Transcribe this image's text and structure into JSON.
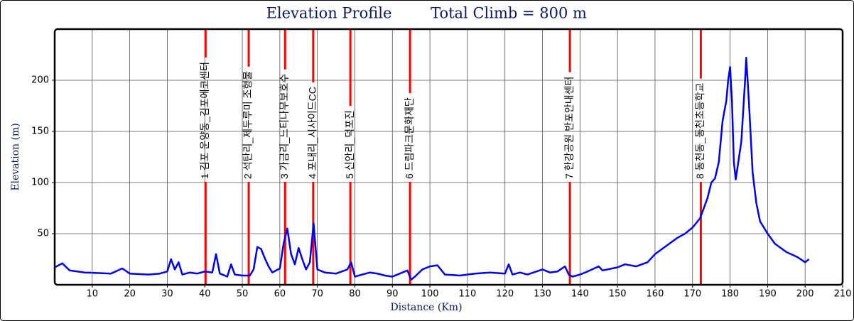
{
  "chart_data": {
    "type": "line",
    "title": "Elevation Profile",
    "subtitle": "Total Climb =  800 m",
    "xlabel": "Distance (Km)",
    "ylabel": "Elevation (m)",
    "xlim": [
      0,
      210
    ],
    "ylim": [
      0,
      250
    ],
    "xticks": [
      10,
      20,
      30,
      40,
      50,
      60,
      70,
      80,
      90,
      100,
      110,
      120,
      130,
      140,
      150,
      160,
      170,
      180,
      190,
      200,
      210
    ],
    "yticks": [
      50,
      100,
      150,
      200
    ],
    "grid": true,
    "x": [
      0,
      2,
      4,
      8,
      15,
      18,
      20,
      25,
      28,
      30,
      31,
      32,
      33,
      34,
      36,
      38,
      40,
      42,
      43,
      44,
      46,
      47,
      48,
      50,
      52,
      53,
      54,
      55,
      56,
      57,
      58,
      60,
      61,
      62,
      63,
      64,
      65,
      66,
      67,
      68,
      69,
      70,
      72,
      75,
      78,
      79,
      80,
      82,
      84,
      86,
      88,
      90,
      92,
      94,
      95,
      96,
      98,
      100,
      102,
      104,
      108,
      112,
      116,
      120,
      121,
      122,
      124,
      126,
      130,
      132,
      134,
      136,
      137,
      138,
      140,
      142,
      145,
      146,
      150,
      152,
      155,
      158,
      160,
      163,
      166,
      168,
      170,
      172,
      174,
      175,
      176,
      177,
      178,
      179,
      179.5,
      180,
      180.5,
      181,
      181.5,
      182,
      183,
      184,
      184.3,
      185,
      186,
      187,
      188,
      190,
      192,
      195,
      198,
      200,
      201
    ],
    "series": [
      {
        "name": "Elevation",
        "color": "#0000ee",
        "values": [
          17,
          21,
          14,
          12,
          11,
          16,
          11,
          10,
          11,
          13,
          25,
          15,
          22,
          10,
          12,
          11,
          13,
          12,
          30,
          11,
          8,
          20,
          10,
          9,
          9,
          15,
          37,
          35,
          26,
          18,
          12,
          16,
          40,
          55,
          30,
          20,
          36,
          25,
          15,
          22,
          60,
          15,
          12,
          11,
          15,
          22,
          8,
          10,
          12,
          11,
          9,
          8,
          11,
          14,
          5,
          8,
          15,
          18,
          19,
          10,
          9,
          11,
          12,
          11,
          20,
          10,
          12,
          10,
          15,
          12,
          13,
          18,
          10,
          8,
          10,
          13,
          18,
          14,
          17,
          20,
          18,
          22,
          30,
          38,
          46,
          50,
          56,
          65,
          85,
          100,
          104,
          120,
          160,
          180,
          200,
          213,
          180,
          120,
          103,
          115,
          140,
          200,
          222,
          180,
          110,
          80,
          62,
          50,
          40,
          32,
          27,
          22,
          25
        ]
      }
    ],
    "marker_color": "#ff0000",
    "markers": [
      {
        "label": "1 김포 운양동_김포에코센터",
        "x": 40.2
      },
      {
        "label": "2 석탄리_제두루미 조형물",
        "x": 51.7
      },
      {
        "label": "3 가금리_느티나무보호수",
        "x": 61.4
      },
      {
        "label": "4 포내리_시사이드CC",
        "x": 68.9
      },
      {
        "label": "5 신안리_덕포진",
        "x": 78.8
      },
      {
        "label": "6 드림파크문화재단",
        "x": 94.7
      },
      {
        "label": "7 한강공원 반포안내센터",
        "x": 137.3
      },
      {
        "label": "8 동천동_동천초등학교",
        "x": 172.2
      }
    ]
  }
}
